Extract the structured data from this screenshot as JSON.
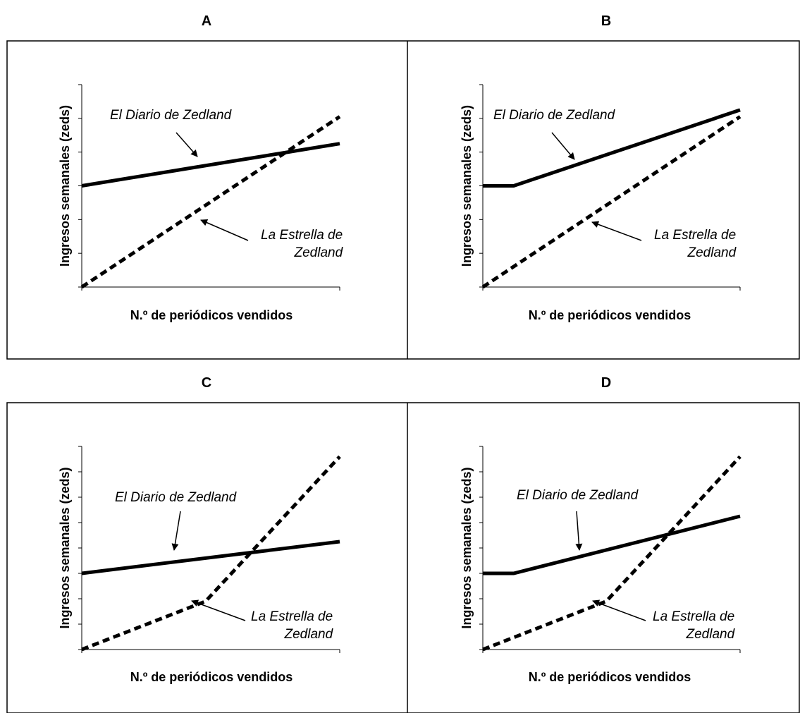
{
  "chart_data": [
    {
      "panel": "A",
      "type": "line",
      "title": "A",
      "xlabel": "N.º de periódicos vendidos",
      "ylabel": "Ingresos semanales (zeds)",
      "xlim": [
        0,
        10
      ],
      "ylim": [
        0,
        6
      ],
      "y_ticks": 6,
      "grid": false,
      "series": [
        {
          "name": "El Diario de Zedland",
          "style": "solid",
          "points": [
            [
              0,
              3.0
            ],
            [
              10,
              4.25
            ]
          ]
        },
        {
          "name": "La Estrella de Zedland",
          "style": "dashed",
          "points": [
            [
              0,
              0
            ],
            [
              10,
              5.05
            ]
          ]
        }
      ],
      "annotations": [
        {
          "series": 0,
          "lines": [
            "El Diario de Zedland"
          ]
        },
        {
          "series": 1,
          "lines": [
            "La Estrella de",
            "Zedland"
          ]
        }
      ]
    },
    {
      "panel": "B",
      "type": "line",
      "title": "B",
      "xlabel": "N.º de periódicos vendidos",
      "ylabel": "Ingresos semanales (zeds)",
      "xlim": [
        0,
        10
      ],
      "ylim": [
        0,
        6
      ],
      "y_ticks": 6,
      "grid": false,
      "series": [
        {
          "name": "El Diario de Zedland",
          "style": "solid",
          "points": [
            [
              0,
              3.0
            ],
            [
              1.2,
              3.0
            ],
            [
              10,
              5.25
            ]
          ]
        },
        {
          "name": "La Estrella de Zedland",
          "style": "dashed",
          "points": [
            [
              0,
              0
            ],
            [
              10,
              5.05
            ]
          ]
        }
      ],
      "annotations": [
        {
          "series": 0,
          "lines": [
            "El Diario de Zedland"
          ]
        },
        {
          "series": 1,
          "lines": [
            "La Estrella de",
            "Zedland"
          ]
        }
      ]
    },
    {
      "panel": "C",
      "type": "line",
      "title": "C",
      "xlabel": "N.º de periódicos vendidos",
      "ylabel": "Ingresos semanales (zeds)",
      "xlim": [
        0,
        10
      ],
      "ylim": [
        0,
        8
      ],
      "y_ticks": 8,
      "grid": false,
      "series": [
        {
          "name": "El Diario de Zedland",
          "style": "solid",
          "points": [
            [
              0,
              3.0
            ],
            [
              10,
              4.25
            ]
          ]
        },
        {
          "name": "La Estrella de Zedland",
          "style": "dashed",
          "points": [
            [
              0,
              0
            ],
            [
              4.8,
              1.9
            ],
            [
              10,
              7.6
            ]
          ]
        }
      ],
      "annotations": [
        {
          "series": 0,
          "lines": [
            "El Diario de Zedland"
          ]
        },
        {
          "series": 1,
          "lines": [
            "La Estrella de",
            "Zedland"
          ]
        }
      ]
    },
    {
      "panel": "D",
      "type": "line",
      "title": "D",
      "xlabel": "N.º de periódicos vendidos",
      "ylabel": "Ingresos semanales (zeds)",
      "xlim": [
        0,
        10
      ],
      "ylim": [
        0,
        8
      ],
      "y_ticks": 8,
      "grid": false,
      "series": [
        {
          "name": "El Diario de Zedland",
          "style": "solid",
          "points": [
            [
              0,
              3.0
            ],
            [
              1.2,
              3.0
            ],
            [
              10,
              5.25
            ]
          ]
        },
        {
          "name": "La Estrella de Zedland",
          "style": "dashed",
          "points": [
            [
              0,
              0
            ],
            [
              4.8,
              1.9
            ],
            [
              10,
              7.6
            ]
          ]
        }
      ],
      "annotations": [
        {
          "series": 0,
          "lines": [
            "El Diario de Zedland"
          ]
        },
        {
          "series": 1,
          "lines": [
            "La Estrella de",
            "Zedland"
          ]
        }
      ]
    }
  ]
}
